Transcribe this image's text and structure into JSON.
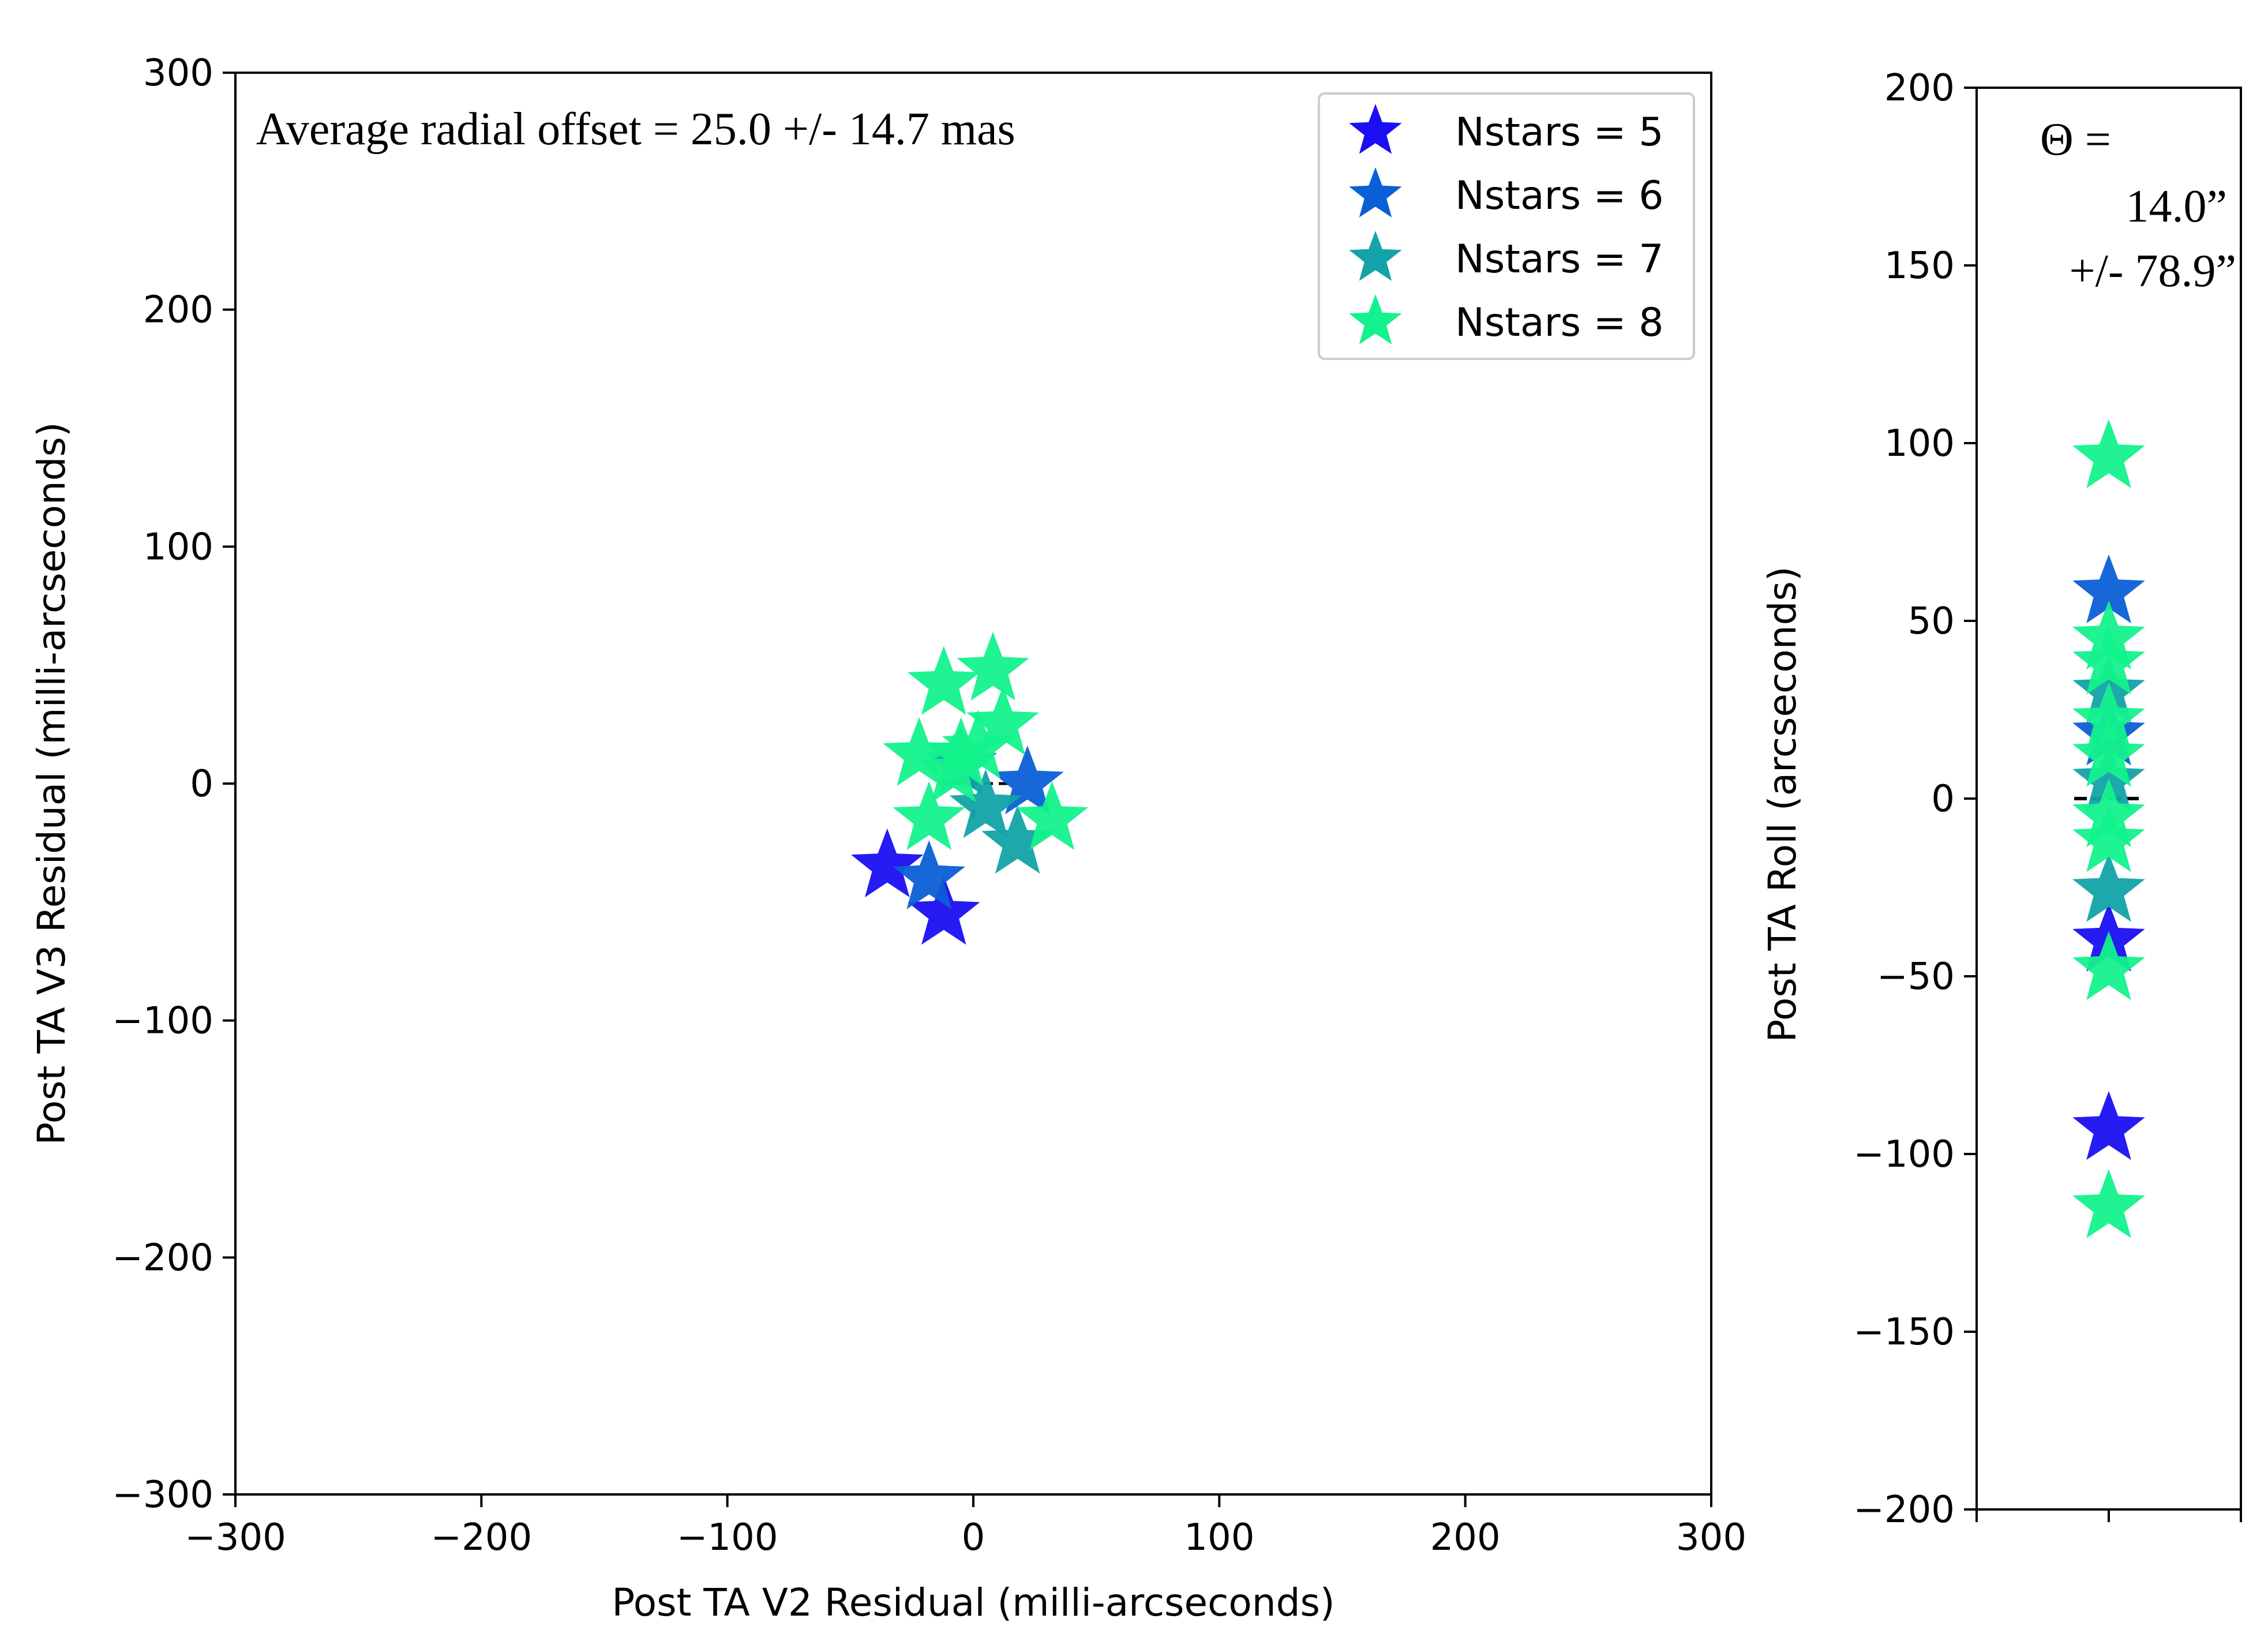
{
  "chart_data": [
    {
      "type": "scatter",
      "xlabel": "Post TA V2 Residual (milli-arcseconds)",
      "ylabel": "Post TA V3 Residual (milli-arcseconds)",
      "xlim": [
        -300,
        300
      ],
      "ylim": [
        -300,
        300
      ],
      "xticks": [
        "−300",
        "−200",
        "−100",
        "0",
        "100",
        "200",
        "300"
      ],
      "yticks": [
        "300",
        "200",
        "100",
        "0",
        "−100",
        "−200",
        "−300"
      ],
      "xtick_values": [
        -300,
        -200,
        -100,
        0,
        100,
        200,
        300
      ],
      "ytick_values": [
        300,
        200,
        100,
        0,
        -100,
        -200,
        -300
      ],
      "grid": false,
      "legend_position": "top-right",
      "annotation": "Average radial offset =  25.0 +/- 14.7 mas",
      "reference_point": [
        0,
        0
      ],
      "series": [
        {
          "name": "Nstars = 5",
          "color": "#1a0ff2",
          "points": [
            [
              -35,
              -35
            ],
            [
              -12,
              -55
            ]
          ]
        },
        {
          "name": "Nstars = 6",
          "color": "#0b5fd6",
          "points": [
            [
              -18,
              -40
            ],
            [
              22,
              0
            ]
          ]
        },
        {
          "name": "Nstars = 7",
          "color": "#13a3a8",
          "points": [
            [
              5,
              -10
            ],
            [
              18,
              -25
            ],
            [
              -5,
              8
            ]
          ]
        },
        {
          "name": "Nstars = 8",
          "color": "#13f28c",
          "points": [
            [
              -12,
              42
            ],
            [
              8,
              48
            ],
            [
              -22,
              12
            ],
            [
              -8,
              5
            ],
            [
              12,
              25
            ],
            [
              -18,
              -15
            ],
            [
              32,
              -15
            ],
            [
              2,
              15
            ],
            [
              -5,
              12
            ]
          ]
        }
      ]
    },
    {
      "type": "scatter",
      "ylabel": "Post TA Roll (arcseconds)",
      "ylim": [
        -200,
        200
      ],
      "yticks": [
        "200",
        "150",
        "100",
        "50",
        "0",
        "−50",
        "−100",
        "−150",
        "−200"
      ],
      "ytick_values": [
        200,
        150,
        100,
        50,
        0,
        -50,
        -100,
        -150,
        -200
      ],
      "grid": false,
      "annotation": {
        "line1": "Θ  =",
        "line2": "14.0”",
        "line3": "+/- 78.9”"
      },
      "reference_value": 0,
      "series": [
        {
          "name": "Nstars = 5",
          "color": "#1a0ff2",
          "values": [
            -40,
            -93
          ]
        },
        {
          "name": "Nstars = 6",
          "color": "#0b5fd6",
          "values": [
            58,
            18
          ]
        },
        {
          "name": "Nstars = 7",
          "color": "#13a3a8",
          "values": [
            30,
            -26,
            5
          ]
        },
        {
          "name": "Nstars = 8",
          "color": "#13f28c",
          "values": [
            96,
            45,
            38,
            22,
            12,
            -5,
            -12,
            -48,
            -115
          ]
        }
      ]
    }
  ]
}
